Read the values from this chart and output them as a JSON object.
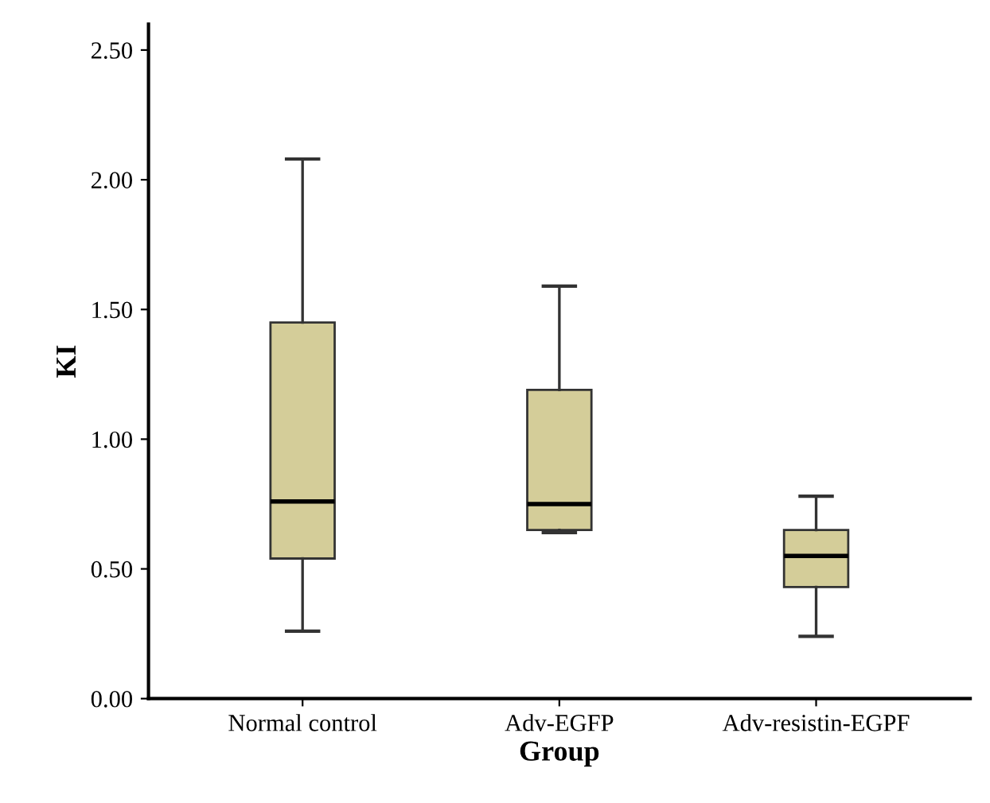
{
  "chart_data": {
    "type": "box",
    "xlabel": "Group",
    "ylabel": "KI",
    "categories": [
      "Normal control",
      "Adv-EGFP",
      "Adv-resistin-EGPF"
    ],
    "color": "#d4cd99",
    "boxes": [
      {
        "low": 0.26,
        "q1": 0.54,
        "median": 0.76,
        "q3": 1.45,
        "high": 2.08
      },
      {
        "low": 0.64,
        "q1": 0.65,
        "median": 0.75,
        "q3": 1.19,
        "high": 1.59
      },
      {
        "low": 0.24,
        "q1": 0.43,
        "median": 0.55,
        "q3": 0.65,
        "high": 0.78
      }
    ],
    "ylim": [
      0,
      2.6
    ],
    "yticks": [
      {
        "value": 0,
        "label": "0.00"
      },
      {
        "value": 0.5,
        "label": "0.50"
      },
      {
        "value": 1,
        "label": "1.00"
      },
      {
        "value": 1.5,
        "label": "1.50"
      },
      {
        "value": 2,
        "label": "2.00"
      },
      {
        "value": 2.5,
        "label": "2.50"
      }
    ],
    "grid": false
  }
}
